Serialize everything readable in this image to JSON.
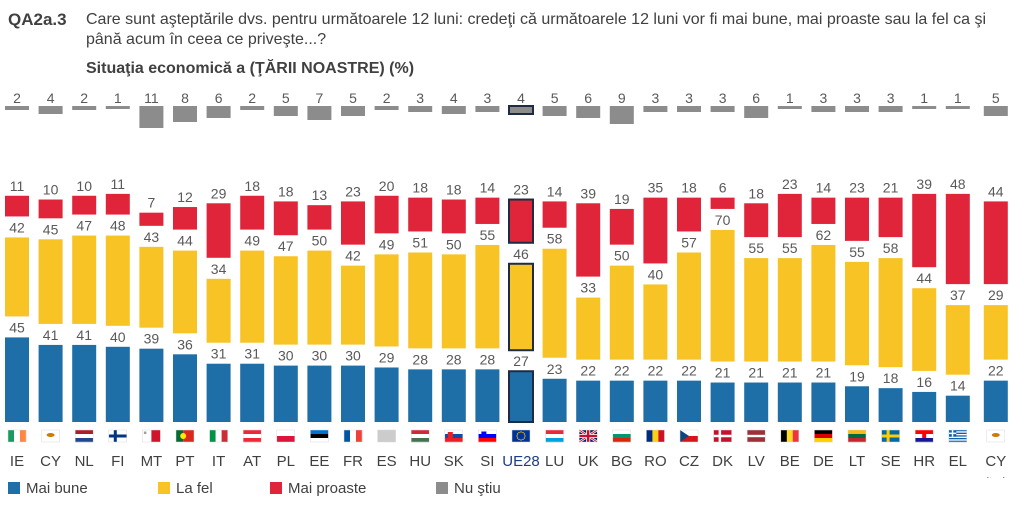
{
  "header": {
    "code": "QA2a.3",
    "question": "Care sunt aşteptările dvs. pentru următoarele 12 luni: credeţi că următoarele 12 luni vor fi mai bune, mai proaste sau la fel ca şi până acum în ceea ce priveşte...?",
    "subtitle": "Situaţia economică a (ŢĂRII NOASTRE) (%)"
  },
  "legend": [
    {
      "label": "Mai bune",
      "color": "#1e6fa8"
    },
    {
      "label": "La fel",
      "color": "#f7c325"
    },
    {
      "label": "Mai proaste",
      "color": "#e0253a"
    },
    {
      "label": "Nu ştiu",
      "color": "#8c8c8c"
    }
  ],
  "chart_data": {
    "type": "bar",
    "stacked": true,
    "title": "Situaţia economică a (ŢĂRII NOASTRE) (%)",
    "categories": [
      "IE",
      "CY",
      "NL",
      "FI",
      "MT",
      "PT",
      "IT",
      "AT",
      "PL",
      "EE",
      "FR",
      "ES",
      "HU",
      "SK",
      "SI",
      "UE28",
      "LU",
      "UK",
      "BG",
      "RO",
      "CZ",
      "DK",
      "LV",
      "BE",
      "DE",
      "LT",
      "SE",
      "HR",
      "EL",
      "CY"
    ],
    "category_note": {
      "index": 29,
      "note": "(tcc)"
    },
    "highlight_index": 15,
    "series": [
      {
        "name": "Mai bune",
        "color": "#1e6fa8",
        "values": [
          45,
          41,
          41,
          40,
          39,
          36,
          31,
          31,
          30,
          30,
          30,
          29,
          28,
          28,
          28,
          27,
          23,
          22,
          22,
          22,
          22,
          21,
          21,
          21,
          21,
          19,
          18,
          16,
          14,
          22
        ]
      },
      {
        "name": "La fel",
        "color": "#f7c325",
        "values": [
          42,
          45,
          47,
          48,
          43,
          44,
          34,
          49,
          47,
          50,
          42,
          49,
          51,
          50,
          55,
          46,
          58,
          33,
          50,
          40,
          57,
          70,
          55,
          55,
          62,
          55,
          58,
          44,
          37,
          29
        ]
      },
      {
        "name": "Mai proaste",
        "color": "#e0253a",
        "values": [
          11,
          10,
          10,
          11,
          7,
          12,
          29,
          18,
          18,
          13,
          23,
          20,
          18,
          18,
          14,
          23,
          14,
          39,
          19,
          35,
          18,
          6,
          18,
          23,
          14,
          23,
          21,
          39,
          48,
          44
        ]
      },
      {
        "name": "Nu ştiu",
        "color": "#8c8c8c",
        "values": [
          2,
          4,
          2,
          1,
          11,
          8,
          6,
          2,
          5,
          7,
          5,
          2,
          3,
          4,
          3,
          4,
          5,
          6,
          9,
          3,
          3,
          3,
          6,
          1,
          3,
          3,
          3,
          1,
          1,
          5
        ]
      }
    ]
  }
}
